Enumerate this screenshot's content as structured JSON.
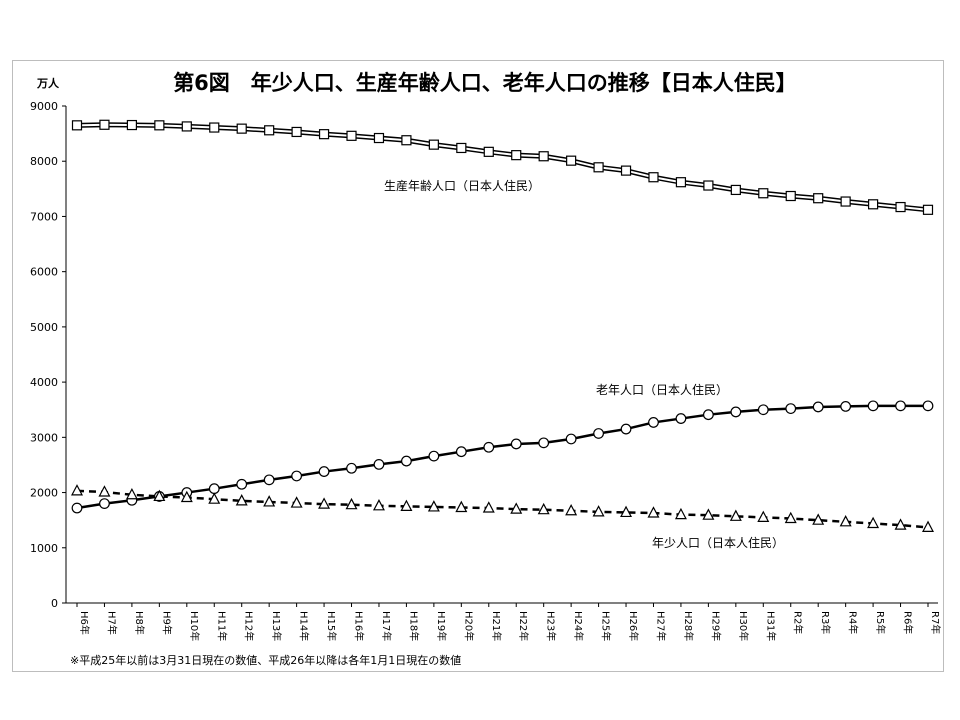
{
  "chart_data": {
    "type": "line",
    "title": "第6図　年少人口、生産年齢人口、老年人口の推移【日本人住民】",
    "ylabel": "万人",
    "ylim": [
      0,
      9000
    ],
    "yticks": [
      0,
      1000,
      2000,
      3000,
      4000,
      5000,
      6000,
      7000,
      8000,
      9000
    ],
    "grid": false,
    "categories": [
      "H6年",
      "H7年",
      "H8年",
      "H9年",
      "H10年",
      "H11年",
      "H12年",
      "H13年",
      "H14年",
      "H15年",
      "H16年",
      "H17年",
      "H18年",
      "H19年",
      "H20年",
      "H21年",
      "H22年",
      "H23年",
      "H24年",
      "H25年",
      "H26年",
      "H27年",
      "H28年",
      "H29年",
      "H30年",
      "H31年",
      "R2年",
      "R3年",
      "R4年",
      "R5年",
      "R6年",
      "R7年"
    ],
    "series": [
      {
        "name": "生産年齢人口（日本人住民）",
        "marker": "square",
        "line": "double",
        "values": [
          8650,
          8660,
          8655,
          8650,
          8630,
          8610,
          8590,
          8560,
          8530,
          8490,
          8460,
          8420,
          8380,
          8300,
          8240,
          8170,
          8110,
          8090,
          8010,
          7890,
          7830,
          7710,
          7620,
          7560,
          7480,
          7420,
          7370,
          7330,
          7270,
          7220,
          7170,
          7120
        ]
      },
      {
        "name": "老年人口（日本人住民）",
        "marker": "circle",
        "line": "solid",
        "values": [
          1720,
          1800,
          1860,
          1930,
          2000,
          2070,
          2150,
          2230,
          2300,
          2380,
          2440,
          2510,
          2570,
          2660,
          2740,
          2820,
          2880,
          2900,
          2970,
          3070,
          3150,
          3270,
          3340,
          3410,
          3460,
          3500,
          3520,
          3550,
          3560,
          3570,
          3570,
          3570
        ]
      },
      {
        "name": "年少人口（日本人住民）",
        "marker": "triangle",
        "line": "dashed",
        "values": [
          2030,
          2010,
          1960,
          1930,
          1910,
          1880,
          1850,
          1830,
          1810,
          1790,
          1780,
          1760,
          1750,
          1740,
          1730,
          1720,
          1700,
          1690,
          1670,
          1650,
          1640,
          1630,
          1600,
          1590,
          1570,
          1550,
          1530,
          1500,
          1470,
          1440,
          1410,
          1370
        ]
      }
    ],
    "note": "※平成25年以前は3月31日現在の数値、平成26年以降は各年1月1日現在の数値"
  }
}
